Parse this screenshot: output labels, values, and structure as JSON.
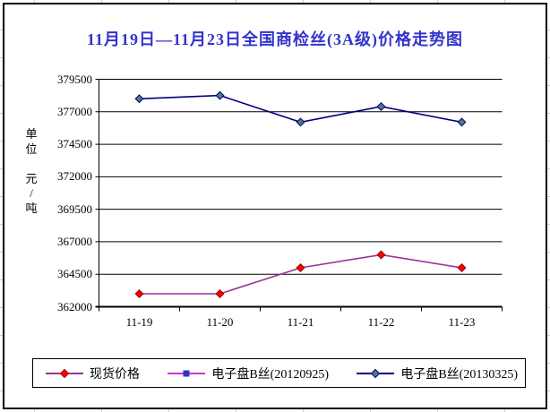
{
  "title": "11月19日—11月23日全国商检丝(3A级)价格走势图",
  "title_color": "#3333cc",
  "chart_data": {
    "type": "line",
    "title": "11月19日—11月23日全国商检丝(3A级)价格走势图",
    "categories": [
      "11-19",
      "11-20",
      "11-21",
      "11-22",
      "11-23"
    ],
    "series": [
      {
        "name": "现货价格",
        "values": [
          363000,
          363000,
          365000,
          366000,
          365000
        ],
        "line_color": "#993399",
        "marker": "diamond",
        "marker_color": "#ff0000",
        "marker_border": "#990000",
        "plotted": true
      },
      {
        "name": "电子盘B丝(20120925)",
        "values": [
          null,
          null,
          null,
          null,
          null
        ],
        "line_color": "#cc33cc",
        "marker": "square",
        "marker_color": "#3333cc",
        "marker_border": "#3333cc",
        "plotted": false
      },
      {
        "name": "电子盘B丝(20130325)",
        "values": [
          378000,
          378250,
          376200,
          377400,
          376200
        ],
        "line_color": "#000080",
        "marker": "diamond",
        "marker_color": "#4e7c78",
        "marker_border": "#000080",
        "plotted": true
      }
    ],
    "xlabel": "",
    "ylabel": "单位 元/吨",
    "ylim": [
      362000,
      379500
    ],
    "ytick_interval": 2500,
    "yticks": [
      362000,
      364500,
      367000,
      369500,
      372000,
      374500,
      377000,
      379500
    ],
    "grid": true,
    "gridline_color": "#000000",
    "legend_position": "bottom"
  }
}
